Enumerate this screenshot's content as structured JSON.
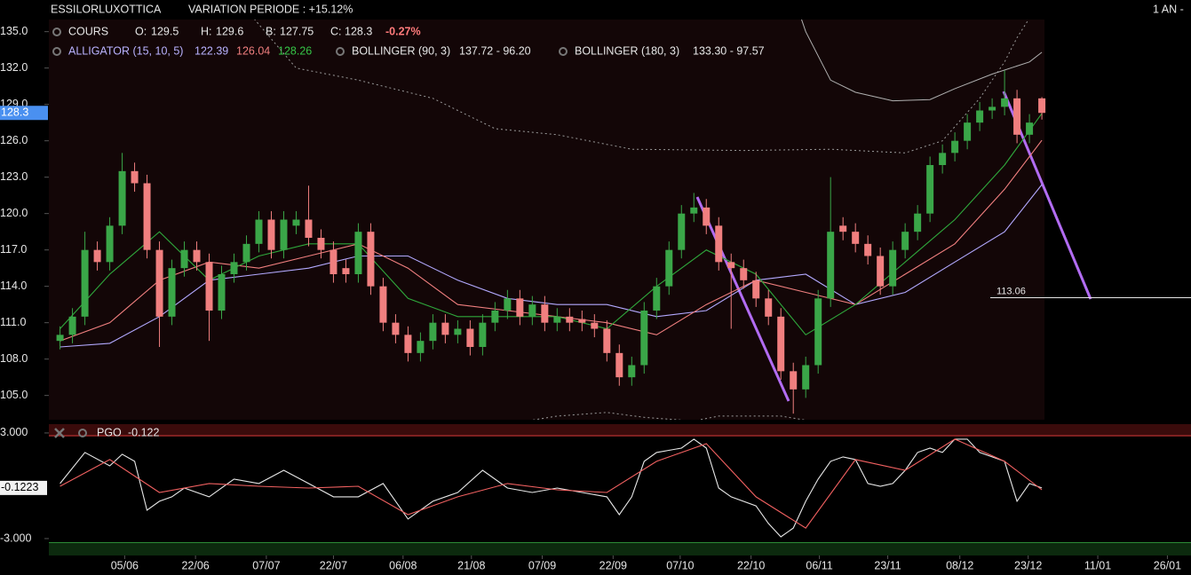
{
  "chart_data": {
    "type": "candlestick",
    "header": {
      "title": "ESSILORLUXOTTICA",
      "variation": "VARIATION PERIODE : +15.12%",
      "period": "1 AN -"
    },
    "xlim": [
      -0.9,
      91
    ],
    "xticks": [
      {
        "value": 5.2,
        "label": "05/06"
      },
      {
        "value": 10.9,
        "label": "22/06"
      },
      {
        "value": 16.6,
        "label": "07/07"
      },
      {
        "value": 22.0,
        "label": "22/07"
      },
      {
        "value": 27.6,
        "label": "06/08"
      },
      {
        "value": 33.1,
        "label": "21/08"
      },
      {
        "value": 38.8,
        "label": "07/09"
      },
      {
        "value": 44.5,
        "label": "22/09"
      },
      {
        "value": 49.9,
        "label": "07/10"
      },
      {
        "value": 55.6,
        "label": "22/10"
      },
      {
        "value": 61.1,
        "label": "06/11"
      },
      {
        "value": 66.6,
        "label": "23/11"
      },
      {
        "value": 72.4,
        "label": "08/12"
      },
      {
        "value": 77.9,
        "label": "23/12"
      },
      {
        "value": 83.5,
        "label": "11/01"
      },
      {
        "value": 89.1,
        "label": "26/01"
      }
    ],
    "ylim": [
      103,
      136
    ],
    "yticks": [
      {
        "value": 105,
        "label": "105.0"
      },
      {
        "value": 108,
        "label": "108.0"
      },
      {
        "value": 111,
        "label": "111.0"
      },
      {
        "value": 114,
        "label": "114.0"
      },
      {
        "value": 117,
        "label": "117.0"
      },
      {
        "value": 120,
        "label": "120.0"
      },
      {
        "value": 123,
        "label": "123.0"
      },
      {
        "value": 126,
        "label": "126.0"
      },
      {
        "value": 129,
        "label": "129.0"
      },
      {
        "value": 132,
        "label": "132.0"
      },
      {
        "value": 135,
        "label": "135.0"
      }
    ],
    "up_color": "#3aa648",
    "down_color": "#f07f7f",
    "cours": {
      "label": "COURS",
      "fields": [
        "O:",
        "H:",
        "B:",
        "C:"
      ],
      "change": "-0.27%"
    },
    "open": [
      109.5,
      110,
      111.5,
      117,
      116,
      119,
      123.5,
      122.5,
      117,
      111.5,
      115.5,
      117,
      116,
      112,
      115,
      116,
      117.5,
      119.5,
      117,
      119,
      119.5,
      118,
      117,
      115.5,
      115,
      118.5,
      114,
      111,
      110,
      108.5,
      109.5,
      111,
      110,
      110.5,
      109,
      111,
      112,
      113,
      111.5,
      112.5,
      111,
      111.5,
      111.3,
      111,
      110.5,
      108.5,
      106.5,
      107.5,
      112,
      114,
      117,
      120,
      120.5,
      119,
      116,
      115.5,
      114.5,
      113,
      111.5,
      107,
      105.5,
      107.5,
      113,
      119,
      118.5,
      117.5,
      116.5,
      114,
      117,
      118.5,
      120,
      124,
      125,
      126,
      127.5,
      128.5,
      128.8,
      129.5,
      126.5,
      129.5
    ],
    "high": [
      110.7,
      112.2,
      118.5,
      117.7,
      119.7,
      125,
      124.2,
      123.2,
      117.7,
      116.2,
      117.7,
      117.7,
      116.7,
      115.7,
      116.7,
      118.2,
      120.2,
      120.2,
      120.2,
      120.2,
      122.3,
      118.7,
      117.7,
      116.2,
      119.2,
      119.2,
      114.7,
      111.7,
      110.7,
      110.2,
      111.7,
      111.7,
      111.2,
      111.2,
      111.7,
      112.7,
      113.7,
      113.7,
      113.2,
      113.2,
      112.2,
      112.2,
      112,
      111.7,
      111.2,
      109.2,
      108.2,
      112.7,
      114.7,
      117.7,
      120.7,
      121.7,
      121.2,
      119.7,
      116.7,
      116.2,
      115.2,
      113.7,
      112.2,
      107.7,
      108.2,
      113.7,
      123,
      119.7,
      119.2,
      118.2,
      117.2,
      117.7,
      119.2,
      120.7,
      124.7,
      125.7,
      126.7,
      128.2,
      129.2,
      129.5,
      131.8,
      130.2,
      128.2,
      129.6
    ],
    "low": [
      108.8,
      109.3,
      110.8,
      115.3,
      115.3,
      118.3,
      121.8,
      116.3,
      109,
      110.8,
      114.8,
      115.3,
      109.5,
      111.3,
      114.3,
      115.3,
      116.8,
      116.3,
      116.3,
      118.3,
      117.3,
      116.3,
      114.3,
      114.3,
      114.3,
      113.3,
      110.3,
      109.3,
      107.8,
      107.8,
      108.8,
      109.3,
      109.3,
      108.3,
      108.3,
      110.3,
      111.3,
      110.8,
      110.8,
      110.3,
      110.3,
      110.3,
      110.3,
      109.8,
      107.8,
      105.8,
      105.8,
      106.8,
      111.3,
      113.3,
      116.3,
      119.3,
      118.3,
      115.3,
      110.5,
      113.8,
      112.3,
      110.8,
      106.3,
      103.5,
      104.8,
      106.8,
      112.3,
      117.8,
      116.8,
      115.8,
      113.3,
      113.3,
      116.3,
      117.8,
      119.3,
      123.3,
      124.3,
      125.3,
      126.8,
      127.8,
      128.1,
      125.8,
      125.8,
      127.75
    ],
    "close": [
      110,
      111.5,
      117,
      116,
      119,
      123.5,
      122.5,
      117,
      111.5,
      115.5,
      117,
      116,
      112,
      115,
      116,
      117.5,
      119.5,
      117,
      119.5,
      119.5,
      118,
      117,
      115,
      115,
      118.5,
      114,
      111,
      110,
      108.5,
      109.5,
      111,
      110,
      110.5,
      109,
      111,
      112,
      113,
      111.5,
      112.5,
      111,
      111.5,
      111,
      111,
      110.5,
      108.5,
      106.5,
      107.5,
      112,
      114,
      117,
      120,
      120.5,
      119,
      116,
      115.5,
      114.5,
      113,
      111.5,
      107,
      105.5,
      107.5,
      113,
      118.5,
      118.5,
      117.5,
      116.5,
      114,
      117,
      118.5,
      120,
      124,
      125,
      126,
      127.5,
      128.5,
      128.8,
      129.5,
      126.5,
      127.5,
      128.3
    ],
    "alligator": {
      "label": "ALLIGATOR (15, 10, 5)",
      "x": [
        0,
        4,
        8,
        12,
        16,
        20,
        24,
        28,
        32,
        36,
        40,
        44,
        48,
        52,
        56,
        60,
        64,
        68,
        72,
        76,
        79
      ],
      "lines": [
        {
          "color": "#b3a9ff",
          "values": [
            109,
            109.3,
            111.5,
            114.5,
            115,
            115.5,
            116.5,
            116.5,
            114.5,
            113,
            112.5,
            112.5,
            111.5,
            112,
            114.5,
            115,
            112.5,
            113.5,
            116,
            118.5,
            122.39
          ]
        },
        {
          "color": "#f07f7f",
          "values": [
            109.5,
            111,
            114.5,
            116,
            115.5,
            116.5,
            117.5,
            115.5,
            112.5,
            112,
            111.5,
            111,
            110,
            112.5,
            114.5,
            113.5,
            112.5,
            115,
            117.5,
            122,
            126.04
          ]
        },
        {
          "color": "#2fa83c",
          "values": [
            110.5,
            115,
            118.5,
            114.5,
            116.5,
            117.5,
            117.5,
            113,
            111.5,
            111.5,
            111.5,
            110.5,
            114,
            117,
            115,
            110,
            112.5,
            116,
            119.5,
            124,
            128.26
          ]
        }
      ]
    },
    "bollinger": [
      {
        "label": "BOLLINGER (90, 3)",
        "range": "137.72 - 96.20",
        "color": "#9a9a9a",
        "dashed": true,
        "bands": [
          {
            "x": [
              14,
              19,
              24,
              30,
              35,
              40,
              46,
              55,
              62,
              68,
              71,
              74,
              76,
              77,
              79
            ],
            "values": [
              138,
              132,
              131,
              129.5,
              127,
              126.5,
              125.3,
              125.2,
              125.3,
              125,
              126,
              129.5,
              132.5,
              134.5,
              137.72
            ]
          },
          {
            "x": [
              37,
              40,
              44,
              47,
              51,
              53,
              58,
              61
            ],
            "values": [
              102.8,
              103.3,
              103.6,
              103.2,
              102.9,
              103.3,
              103.3,
              102.8
            ]
          }
        ]
      },
      {
        "label": "BOLLINGER (180, 3)",
        "range": "133.30 - 97.57",
        "color": "#b0b0b0",
        "dashed": false,
        "bands": [
          {
            "x": [
              59,
              60,
              62,
              64,
              67,
              70,
              72,
              75,
              78,
              79
            ],
            "values": [
              138,
              135,
              131,
              130,
              129.3,
              129.4,
              130.3,
              131.5,
              132.5,
              133.3
            ]
          }
        ]
      }
    ],
    "level": 113.06,
    "pgo": {
      "label": "PGO",
      "header_value": -0.122,
      "ylim": [
        -3.96,
        3.5
      ],
      "yticks": [
        {
          "value": 3,
          "label": "3.000"
        },
        {
          "value": -3,
          "label": "-3.000"
        }
      ],
      "line": {
        "color": "#e8e8e8",
        "x": [
          0,
          2,
          4,
          5,
          6,
          7,
          8,
          9,
          10,
          12,
          14,
          16,
          18,
          20,
          22,
          24,
          26,
          28,
          30,
          32,
          34,
          36,
          38,
          40,
          42,
          44,
          45,
          46,
          47,
          48,
          50,
          51,
          52,
          53,
          54,
          56,
          57,
          58,
          59,
          60,
          61,
          62,
          63,
          64,
          65,
          66,
          67,
          68,
          69,
          70,
          71,
          72,
          73,
          74,
          75,
          76,
          77,
          78,
          79
        ],
        "values": [
          0.13,
          1.89,
          1.13,
          1.79,
          1.39,
          -1.39,
          -0.88,
          -0.63,
          -0.13,
          -0.63,
          0.38,
          0.13,
          0.88,
          0.13,
          -0.63,
          -0.63,
          0.13,
          -1.89,
          -0.88,
          -0.38,
          0.88,
          -0.13,
          -0.38,
          -0.13,
          -0.38,
          -0.63,
          -1.64,
          -0.63,
          1.39,
          1.89,
          2.14,
          2.65,
          2.14,
          -0.13,
          -0.63,
          -1.14,
          -2.14,
          -2.9,
          -2.4,
          -0.88,
          0.38,
          1.39,
          1.64,
          1.49,
          0.13,
          -0.03,
          0.13,
          0.88,
          1.89,
          2.14,
          1.89,
          2.65,
          2.65,
          1.89,
          1.64,
          1.39,
          -0.88,
          0.13,
          -0.1223
        ]
      },
      "signal": {
        "color": "#f06060",
        "x": [
          0,
          4,
          8,
          12,
          16,
          20,
          24,
          28,
          32,
          36,
          40,
          44,
          48,
          52,
          56,
          60,
          64,
          68,
          72,
          76,
          79
        ],
        "values": [
          -0.03,
          1.49,
          -0.38,
          0.13,
          -0.03,
          -0.13,
          -0.03,
          -1.64,
          -0.63,
          0.13,
          -0.23,
          -0.38,
          1.39,
          2.39,
          -0.63,
          -2.4,
          1.49,
          0.88,
          2.65,
          1.39,
          -0.23
        ]
      }
    }
  }
}
